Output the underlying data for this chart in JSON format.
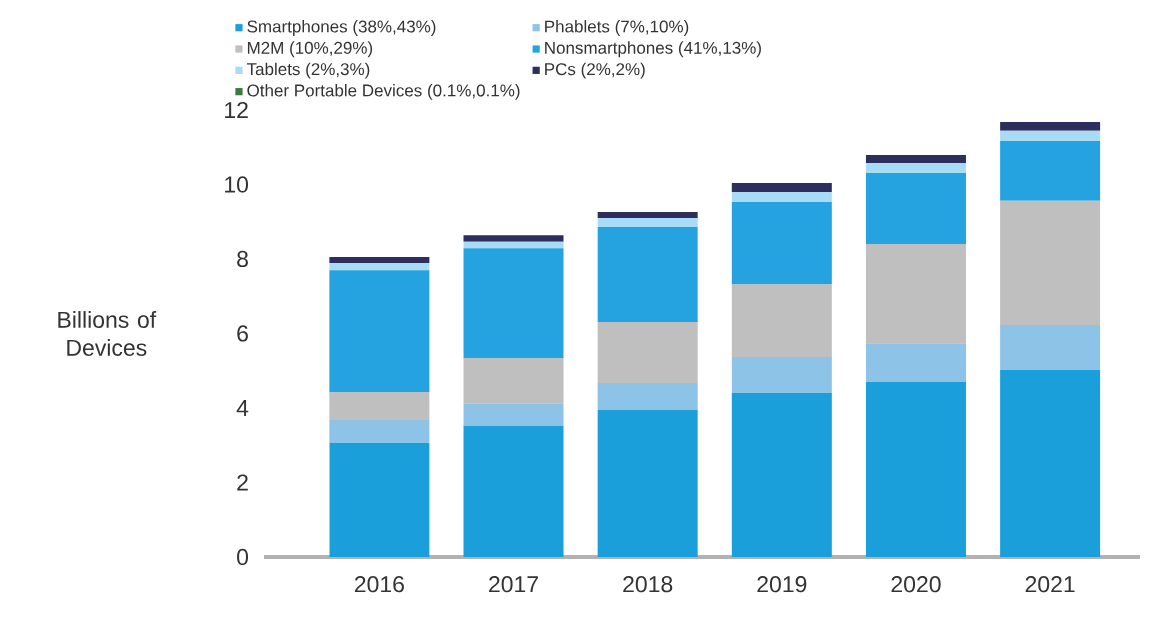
{
  "chart_data": {
    "type": "bar",
    "stacked": true,
    "ylabel": "Billions of Devices",
    "categories": [
      "2016",
      "2017",
      "2018",
      "2019",
      "2020",
      "2021"
    ],
    "series": [
      {
        "name": "Smartphones (38%,43%)",
        "color": "#1a9fdb",
        "values": [
          3.06,
          3.52,
          3.95,
          4.4,
          4.7,
          5.02
        ]
      },
      {
        "name": "Phablets (7%,10%)",
        "color": "#8cc3e6",
        "values": [
          0.62,
          0.61,
          0.72,
          0.97,
          1.04,
          1.21
        ]
      },
      {
        "name": "M2M (10%,29%)",
        "color": "#bfbfbf",
        "values": [
          0.75,
          1.21,
          1.64,
          1.96,
          2.66,
          3.33
        ]
      },
      {
        "name": "Nonsmartphones (41%,13%)",
        "color": "#24a3e0",
        "values": [
          3.27,
          2.95,
          2.55,
          2.2,
          1.91,
          1.61
        ]
      },
      {
        "name": "Tablets (2%,3%)",
        "color": "#a8dcf5",
        "values": [
          0.19,
          0.17,
          0.24,
          0.27,
          0.27,
          0.27
        ]
      },
      {
        "name": "PCs (2%,2%)",
        "color": "#2e2e5e",
        "values": [
          0.16,
          0.18,
          0.16,
          0.24,
          0.21,
          0.24
        ]
      },
      {
        "name": "Other Portable Devices (0.1%,0.1%)",
        "color": "#3a7a3a",
        "values": [
          null,
          null,
          null,
          null,
          null,
          null
        ]
      }
    ],
    "ylim": [
      0,
      12
    ],
    "yticks": [
      0,
      2,
      4,
      6,
      8,
      10,
      12
    ],
    "legend": "top left",
    "grid": false
  }
}
